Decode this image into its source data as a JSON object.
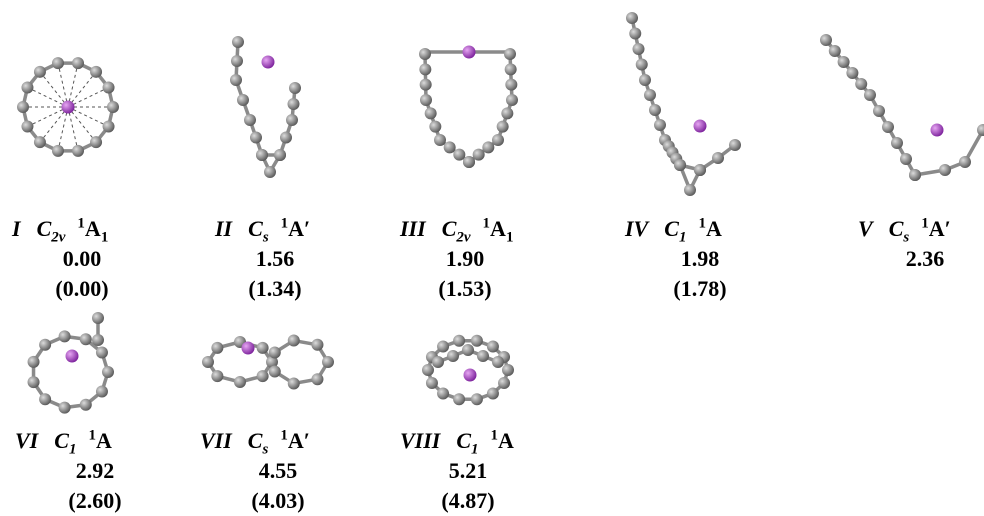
{
  "structures": [
    {
      "label": "I",
      "symmetry": {
        "base": "C",
        "sub": "2v"
      },
      "state": {
        "sup": "1",
        "base": "A",
        "sub": "1"
      },
      "energy": "0.00",
      "energy_alt": "(0.00)"
    },
    {
      "label": "II",
      "symmetry": {
        "base": "C",
        "sub": "s"
      },
      "state": {
        "sup": "1",
        "base": "A′"
      },
      "energy": "1.56",
      "energy_alt": "(1.34)"
    },
    {
      "label": "III",
      "symmetry": {
        "base": "C",
        "sub": "2v"
      },
      "state": {
        "sup": "1",
        "base": "A",
        "sub": "1"
      },
      "energy": "1.90",
      "energy_alt": "(1.53)"
    },
    {
      "label": "IV",
      "symmetry": {
        "base": "C",
        "sub": "1"
      },
      "state": {
        "sup": "1",
        "base": "A"
      },
      "energy": "1.98",
      "energy_alt": "(1.78)"
    },
    {
      "label": "V",
      "symmetry": {
        "base": "C",
        "sub": "s"
      },
      "state": {
        "sup": "1",
        "base": "A′"
      },
      "energy": "2.36"
    },
    {
      "label": "VI",
      "symmetry": {
        "base": "C",
        "sub": "1"
      },
      "state": {
        "sup": "1",
        "base": "A"
      },
      "energy": "2.92",
      "energy_alt": "(2.60)"
    },
    {
      "label": "VII",
      "symmetry": {
        "base": "C",
        "sub": "s"
      },
      "state": {
        "sup": "1",
        "base": "A′"
      },
      "energy": "4.55",
      "energy_alt": "(4.03)"
    },
    {
      "label": "VIII",
      "symmetry": {
        "base": "C",
        "sub": "1"
      },
      "state": {
        "sup": "1",
        "base": "A"
      },
      "energy": "5.21",
      "energy_alt": "(4.87)"
    }
  ]
}
